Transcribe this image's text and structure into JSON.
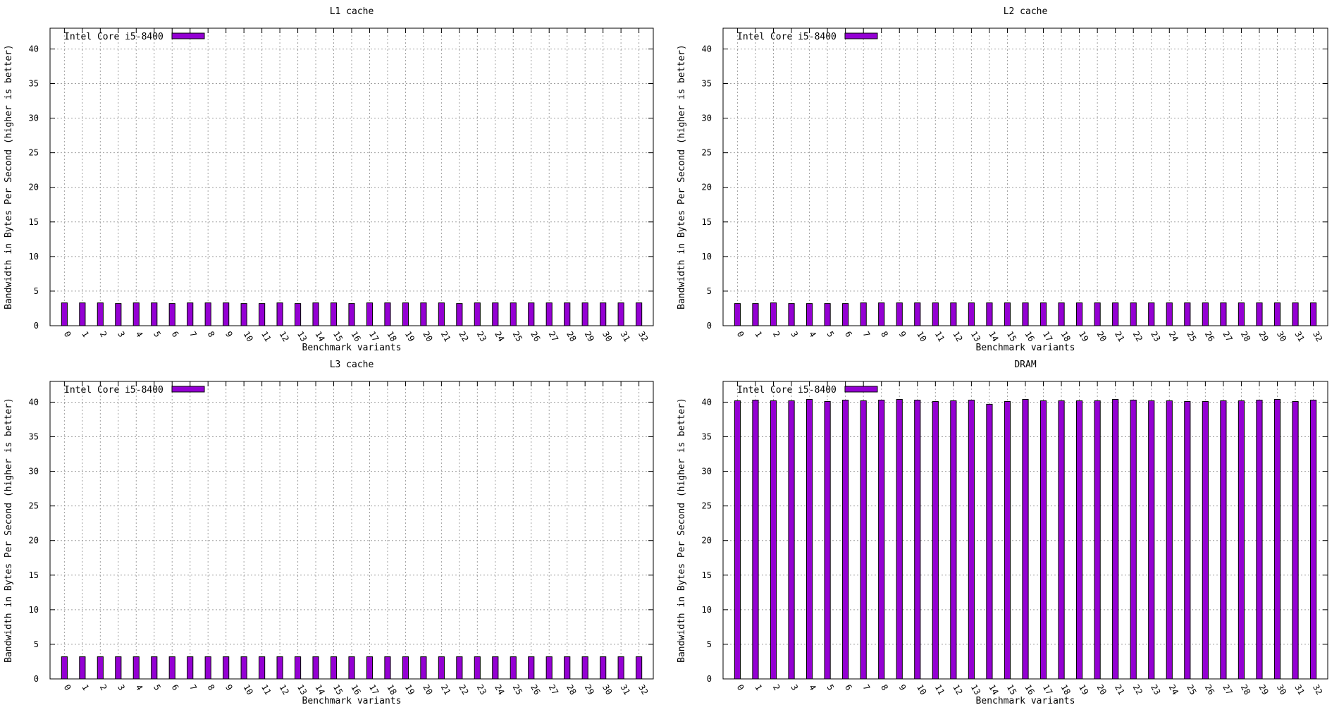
{
  "chart_data": [
    {
      "type": "bar",
      "title": "L1 cache",
      "xlabel": "Benchmark variants",
      "ylabel": "Bandwidth in Bytes Per Second (higher is better)",
      "ylim": [
        0,
        43
      ],
      "yticks": [
        0,
        5,
        10,
        15,
        20,
        25,
        30,
        35,
        40
      ],
      "grid": true,
      "legend_position": "top-left",
      "categories": [
        "0",
        "1",
        "2",
        "3",
        "4",
        "5",
        "6",
        "7",
        "8",
        "9",
        "10",
        "11",
        "12",
        "13",
        "14",
        "15",
        "16",
        "17",
        "18",
        "19",
        "20",
        "21",
        "22",
        "23",
        "24",
        "25",
        "26",
        "27",
        "28",
        "29",
        "30",
        "31",
        "32"
      ],
      "series": [
        {
          "name": "Intel Core i5-8400",
          "color": "#9400d3",
          "values": [
            3.3,
            3.3,
            3.3,
            3.2,
            3.3,
            3.3,
            3.2,
            3.3,
            3.3,
            3.3,
            3.2,
            3.2,
            3.3,
            3.2,
            3.3,
            3.3,
            3.2,
            3.3,
            3.3,
            3.3,
            3.3,
            3.3,
            3.2,
            3.3,
            3.3,
            3.3,
            3.3,
            3.3,
            3.3,
            3.3,
            3.3,
            3.3,
            3.3
          ]
        }
      ]
    },
    {
      "type": "bar",
      "title": "L2 cache",
      "xlabel": "Benchmark variants",
      "ylabel": "Bandwidth in Bytes Per Second (higher is better)",
      "ylim": [
        0,
        43
      ],
      "yticks": [
        0,
        5,
        10,
        15,
        20,
        25,
        30,
        35,
        40
      ],
      "grid": true,
      "legend_position": "top-left",
      "categories": [
        "0",
        "1",
        "2",
        "3",
        "4",
        "5",
        "6",
        "7",
        "8",
        "9",
        "10",
        "11",
        "12",
        "13",
        "14",
        "15",
        "16",
        "17",
        "18",
        "19",
        "20",
        "21",
        "22",
        "23",
        "24",
        "25",
        "26",
        "27",
        "28",
        "29",
        "30",
        "31",
        "32"
      ],
      "series": [
        {
          "name": "Intel Core i5-8400",
          "color": "#9400d3",
          "values": [
            3.2,
            3.2,
            3.3,
            3.2,
            3.2,
            3.2,
            3.2,
            3.3,
            3.3,
            3.3,
            3.3,
            3.3,
            3.3,
            3.3,
            3.3,
            3.3,
            3.3,
            3.3,
            3.3,
            3.3,
            3.3,
            3.3,
            3.3,
            3.3,
            3.3,
            3.3,
            3.3,
            3.3,
            3.3,
            3.3,
            3.3,
            3.3,
            3.3
          ]
        }
      ]
    },
    {
      "type": "bar",
      "title": "L3 cache",
      "xlabel": "Benchmark variants",
      "ylabel": "Bandwidth in Bytes Per Second (higher is better)",
      "ylim": [
        0,
        43
      ],
      "yticks": [
        0,
        5,
        10,
        15,
        20,
        25,
        30,
        35,
        40
      ],
      "grid": true,
      "legend_position": "top-left",
      "categories": [
        "0",
        "1",
        "2",
        "3",
        "4",
        "5",
        "6",
        "7",
        "8",
        "9",
        "10",
        "11",
        "12",
        "13",
        "14",
        "15",
        "16",
        "17",
        "18",
        "19",
        "20",
        "21",
        "22",
        "23",
        "24",
        "25",
        "26",
        "27",
        "28",
        "29",
        "30",
        "31",
        "32"
      ],
      "series": [
        {
          "name": "Intel Core i5-8400",
          "color": "#9400d3",
          "values": [
            3.2,
            3.2,
            3.2,
            3.2,
            3.2,
            3.2,
            3.2,
            3.2,
            3.2,
            3.2,
            3.2,
            3.2,
            3.2,
            3.2,
            3.2,
            3.2,
            3.2,
            3.2,
            3.2,
            3.2,
            3.2,
            3.2,
            3.2,
            3.2,
            3.2,
            3.2,
            3.2,
            3.2,
            3.2,
            3.2,
            3.2,
            3.2,
            3.2
          ]
        }
      ]
    },
    {
      "type": "bar",
      "title": "DRAM",
      "xlabel": "Benchmark variants",
      "ylabel": "Bandwidth in Bytes Per Second (higher is better)",
      "ylim": [
        0,
        43
      ],
      "yticks": [
        0,
        5,
        10,
        15,
        20,
        25,
        30,
        35,
        40
      ],
      "grid": true,
      "legend_position": "top-left",
      "categories": [
        "0",
        "1",
        "2",
        "3",
        "4",
        "5",
        "6",
        "7",
        "8",
        "9",
        "10",
        "11",
        "12",
        "13",
        "14",
        "15",
        "16",
        "17",
        "18",
        "19",
        "20",
        "21",
        "22",
        "23",
        "24",
        "25",
        "26",
        "27",
        "28",
        "29",
        "30",
        "31",
        "32"
      ],
      "series": [
        {
          "name": "Intel Core i5-8400",
          "color": "#9400d3",
          "values": [
            40.2,
            40.3,
            40.2,
            40.2,
            40.4,
            40.1,
            40.3,
            40.2,
            40.3,
            40.4,
            40.3,
            40.1,
            40.2,
            40.3,
            39.7,
            40.1,
            40.4,
            40.2,
            40.2,
            40.2,
            40.2,
            40.4,
            40.3,
            40.2,
            40.2,
            40.1,
            40.1,
            40.2,
            40.2,
            40.3,
            40.4,
            40.1,
            40.3
          ]
        }
      ]
    }
  ]
}
